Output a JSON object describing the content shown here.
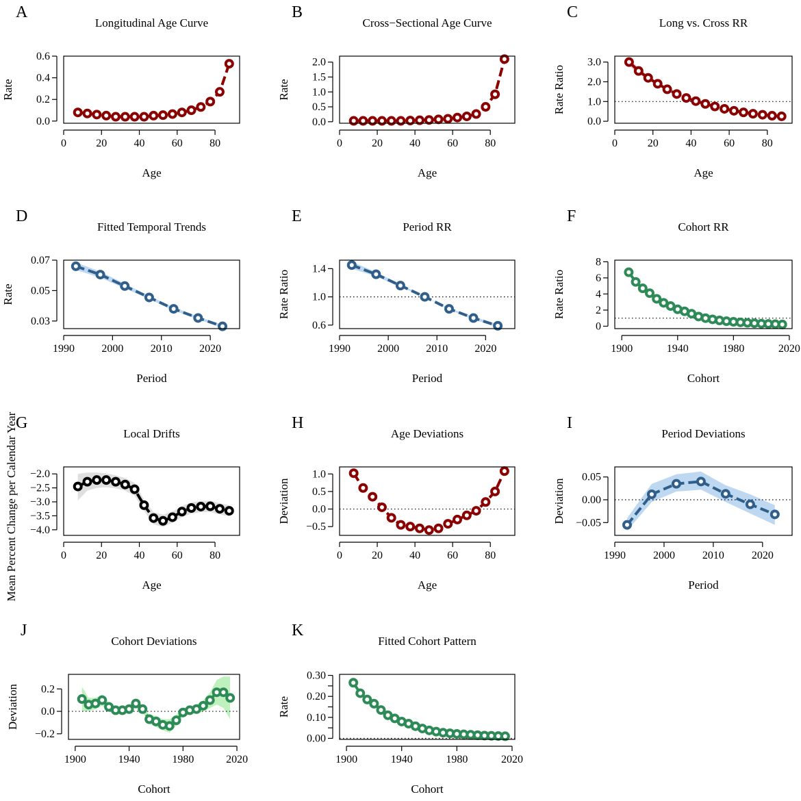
{
  "chart_data": [
    {
      "id": "A",
      "letter": "A",
      "type": "line",
      "title": "Longitudinal Age Curve",
      "xlabel": "Age",
      "ylabel": "Rate",
      "xlim": [
        0,
        93
      ],
      "xticks": [
        0,
        20,
        40,
        60,
        80
      ],
      "ylim": [
        -0.02,
        0.6
      ],
      "yticks": [
        0.0,
        0.2,
        0.4,
        0.6
      ],
      "ytick_labels": [
        "0.0",
        "0.2",
        "0.4",
        "0.6"
      ],
      "refline": null,
      "color": "#8b0000",
      "x": [
        7.5,
        12.5,
        17.5,
        22.5,
        27.5,
        32.5,
        37.5,
        42.5,
        47.5,
        52.5,
        57.5,
        62.5,
        67.5,
        72.5,
        77.5,
        82.5,
        87.5
      ],
      "y": [
        0.08,
        0.07,
        0.06,
        0.05,
        0.04,
        0.04,
        0.04,
        0.04,
        0.05,
        0.055,
        0.065,
        0.08,
        0.1,
        0.13,
        0.18,
        0.27,
        0.53
      ],
      "band": null
    },
    {
      "id": "B",
      "letter": "B",
      "type": "line",
      "title": "Cross−Sectional Age Curve",
      "xlabel": "Age",
      "ylabel": "Rate",
      "xlim": [
        0,
        93
      ],
      "xticks": [
        0,
        20,
        40,
        60,
        80
      ],
      "ylim": [
        -0.05,
        2.2
      ],
      "yticks": [
        0.0,
        0.5,
        1.0,
        1.5,
        2.0
      ],
      "ytick_labels": [
        "0.0",
        "0.5",
        "1.0",
        "1.5",
        "2.0"
      ],
      "refline": null,
      "color": "#8b0000",
      "x": [
        7.5,
        12.5,
        17.5,
        22.5,
        27.5,
        32.5,
        37.5,
        42.5,
        47.5,
        52.5,
        57.5,
        62.5,
        67.5,
        72.5,
        77.5,
        82.5,
        87.5
      ],
      "y": [
        0.03,
        0.03,
        0.03,
        0.03,
        0.03,
        0.03,
        0.04,
        0.05,
        0.06,
        0.08,
        0.1,
        0.14,
        0.18,
        0.26,
        0.5,
        0.92,
        2.1
      ],
      "band": null
    },
    {
      "id": "C",
      "letter": "C",
      "type": "line",
      "title": "Long vs. Cross RR",
      "xlabel": "Age",
      "ylabel": "Rate Ratio",
      "xlim": [
        0,
        93
      ],
      "xticks": [
        0,
        20,
        40,
        60,
        80
      ],
      "ylim": [
        -0.1,
        3.3
      ],
      "yticks": [
        0.0,
        1.0,
        2.0,
        3.0
      ],
      "ytick_labels": [
        "0.0",
        "1.0",
        "2.0",
        "3.0"
      ],
      "refline": 1.0,
      "color": "#8b0000",
      "x": [
        7.5,
        12.5,
        17.5,
        22.5,
        27.5,
        32.5,
        37.5,
        42.5,
        47.5,
        52.5,
        57.5,
        62.5,
        67.5,
        72.5,
        77.5,
        82.5,
        87.5
      ],
      "y": [
        3.0,
        2.55,
        2.2,
        1.9,
        1.62,
        1.38,
        1.18,
        1.02,
        0.88,
        0.75,
        0.63,
        0.53,
        0.45,
        0.38,
        0.33,
        0.28,
        0.25
      ],
      "band": {
        "lower": [
          2.8,
          2.4,
          2.1,
          1.82,
          1.57,
          1.34,
          1.15,
          1.0,
          0.86,
          0.73,
          0.62,
          0.52,
          0.44,
          0.37,
          0.32,
          0.27,
          0.24
        ],
        "upper": [
          3.2,
          2.7,
          2.3,
          1.98,
          1.67,
          1.42,
          1.21,
          1.04,
          0.9,
          0.77,
          0.64,
          0.54,
          0.46,
          0.39,
          0.34,
          0.29,
          0.26
        ],
        "color": "#f2c4c8"
      }
    },
    {
      "id": "D",
      "letter": "D",
      "type": "line",
      "title": "Fitted Temporal Trends",
      "xlabel": "Period",
      "ylabel": "Rate",
      "xlim": [
        1990,
        2026
      ],
      "xticks": [
        1990,
        2000,
        2010,
        2020
      ],
      "ylim": [
        0.025,
        0.07
      ],
      "yticks": [
        0.03,
        0.05,
        0.07
      ],
      "ytick_labels": [
        "0.03",
        "0.05",
        "0.07"
      ],
      "refline": null,
      "color": "#2f5f8a",
      "x": [
        1992.5,
        1997.5,
        2002.5,
        2007.5,
        2012.5,
        2017.5,
        2022.5
      ],
      "y": [
        0.066,
        0.0605,
        0.053,
        0.0455,
        0.038,
        0.032,
        0.0265
      ],
      "band": {
        "lower": [
          0.0635,
          0.0585,
          0.0515,
          0.0445,
          0.037,
          0.0311,
          0.0255
        ],
        "upper": [
          0.0685,
          0.0625,
          0.0545,
          0.0465,
          0.039,
          0.0329,
          0.0275
        ],
        "color": "#b8d4f0"
      }
    },
    {
      "id": "E",
      "letter": "E",
      "type": "line",
      "title": "Period RR",
      "xlabel": "Period",
      "ylabel": "Rate Ratio",
      "xlim": [
        1990,
        2026
      ],
      "xticks": [
        1990,
        2000,
        2010,
        2020
      ],
      "ylim": [
        0.55,
        1.52
      ],
      "yticks": [
        0.6,
        1.0,
        1.4
      ],
      "ytick_labels": [
        "0.6",
        "1.0",
        "1.4"
      ],
      "refline": 1.0,
      "color": "#2f5f8a",
      "x": [
        1992.5,
        1997.5,
        2002.5,
        2007.5,
        2012.5,
        2017.5,
        2022.5
      ],
      "y": [
        1.45,
        1.32,
        1.16,
        1.0,
        0.83,
        0.7,
        0.59
      ],
      "band": {
        "lower": [
          1.4,
          1.29,
          1.14,
          1.0,
          0.82,
          0.68,
          0.57
        ],
        "upper": [
          1.5,
          1.35,
          1.18,
          1.0,
          0.84,
          0.72,
          0.61
        ],
        "color": "#b8d4f0"
      }
    },
    {
      "id": "F",
      "letter": "F",
      "type": "line",
      "title": "Cohort RR",
      "xlabel": "Cohort",
      "ylabel": "Rate Ratio",
      "xlim": [
        1895,
        2022
      ],
      "xticks": [
        1900,
        1940,
        1980,
        2020
      ],
      "ylim": [
        -0.3,
        8.2
      ],
      "yticks": [
        0,
        2,
        4,
        6,
        8
      ],
      "ytick_labels": [
        "0",
        "2",
        "4",
        "6",
        "8"
      ],
      "refline": 1.0,
      "color": "#2e8b57",
      "x": [
        1905,
        1910,
        1915,
        1920,
        1925,
        1930,
        1935,
        1940,
        1945,
        1950,
        1955,
        1960,
        1965,
        1970,
        1975,
        1980,
        1985,
        1990,
        1995,
        2000,
        2005,
        2010,
        2015
      ],
      "y": [
        6.7,
        5.5,
        4.7,
        4.1,
        3.4,
        2.9,
        2.5,
        2.1,
        1.85,
        1.55,
        1.2,
        1.0,
        0.85,
        0.72,
        0.62,
        0.55,
        0.48,
        0.42,
        0.37,
        0.32,
        0.28,
        0.25,
        0.22
      ],
      "band": null
    },
    {
      "id": "G",
      "letter": "G",
      "type": "line",
      "title": "Local Drifts",
      "xlabel": "Age",
      "ylabel": "Mean Percent Change per Calendar Year",
      "xlim": [
        0,
        93
      ],
      "xticks": [
        0,
        20,
        40,
        60,
        80
      ],
      "ylim": [
        -4.2,
        -1.75
      ],
      "yticks": [
        -4.0,
        -3.5,
        -3.0,
        -2.5,
        -2.0
      ],
      "ytick_labels": [
        "−4.0",
        "−3.5",
        "−3.0",
        "−2.5",
        "−2.0"
      ],
      "refline": null,
      "color": "#000000",
      "x": [
        7.5,
        12.5,
        17.5,
        22.5,
        27.5,
        32.5,
        37.5,
        42.5,
        47.5,
        52.5,
        57.5,
        62.5,
        67.5,
        72.5,
        77.5,
        82.5,
        87.5
      ],
      "y": [
        -2.45,
        -2.28,
        -2.22,
        -2.22,
        -2.28,
        -2.38,
        -2.55,
        -3.12,
        -3.58,
        -3.68,
        -3.55,
        -3.35,
        -3.22,
        -3.17,
        -3.16,
        -3.25,
        -3.32
      ],
      "band": {
        "lower": [
          -2.95,
          -2.6,
          -2.5,
          -2.48,
          -2.52,
          -2.6,
          -2.78,
          -3.32,
          -3.8,
          -3.9,
          -3.75,
          -3.55,
          -3.42,
          -3.37,
          -3.36,
          -3.45,
          -3.52
        ],
        "upper": [
          -2.0,
          -1.95,
          -1.95,
          -1.98,
          -2.05,
          -2.15,
          -2.32,
          -2.92,
          -3.36,
          -3.46,
          -3.35,
          -3.15,
          -3.02,
          -2.97,
          -2.96,
          -3.05,
          -3.12
        ],
        "color": "#dcdcdc"
      }
    },
    {
      "id": "H",
      "letter": "H",
      "type": "line",
      "title": "Age Deviations",
      "xlabel": "Age",
      "ylabel": "Deviation",
      "xlim": [
        0,
        93
      ],
      "xticks": [
        0,
        20,
        40,
        60,
        80
      ],
      "ylim": [
        -0.75,
        1.2
      ],
      "yticks": [
        -0.5,
        0.0,
        0.5,
        1.0
      ],
      "ytick_labels": [
        "−0.5",
        "0.0",
        "0.5",
        "1.0"
      ],
      "refline": 0.0,
      "color": "#8b0000",
      "x": [
        7.5,
        12.5,
        17.5,
        22.5,
        27.5,
        32.5,
        37.5,
        42.5,
        47.5,
        52.5,
        57.5,
        62.5,
        67.5,
        72.5,
        77.5,
        82.5,
        87.5
      ],
      "y": [
        1.02,
        0.6,
        0.35,
        0.05,
        -0.25,
        -0.45,
        -0.5,
        -0.55,
        -0.6,
        -0.55,
        -0.42,
        -0.3,
        -0.18,
        -0.05,
        0.2,
        0.5,
        1.08
      ],
      "band": null
    },
    {
      "id": "I",
      "letter": "I",
      "type": "line",
      "title": "Period Deviations",
      "xlabel": "Period",
      "ylabel": "Deviation",
      "xlim": [
        1990,
        2026
      ],
      "xticks": [
        1990,
        2000,
        2010,
        2020
      ],
      "ylim": [
        -0.078,
        0.072
      ],
      "yticks": [
        -0.05,
        0.0,
        0.05
      ],
      "ytick_labels": [
        "−0.05",
        "0.00",
        "0.05"
      ],
      "refline": 0.0,
      "color": "#2f5f8a",
      "x": [
        1992.5,
        1997.5,
        2002.5,
        2007.5,
        2012.5,
        2017.5,
        2022.5
      ],
      "y": [
        -0.055,
        0.012,
        0.035,
        0.04,
        0.013,
        -0.01,
        -0.032
      ],
      "band": {
        "lower": [
          -0.068,
          -0.005,
          0.018,
          0.022,
          -0.005,
          -0.03,
          -0.055
        ],
        "upper": [
          -0.04,
          0.035,
          0.056,
          0.062,
          0.032,
          0.012,
          -0.012
        ],
        "color": "#b8d4f0"
      }
    },
    {
      "id": "J",
      "letter": "J",
      "type": "line",
      "title": "Cohort Deviations",
      "xlabel": "Cohort",
      "ylabel": "Deviation",
      "xlim": [
        1895,
        2022
      ],
      "xticks": [
        1900,
        1940,
        1980,
        2020
      ],
      "ylim": [
        -0.25,
        0.33
      ],
      "yticks": [
        -0.2,
        0.0,
        0.2
      ],
      "ytick_labels": [
        "−0.2",
        "0.0",
        "0.2"
      ],
      "refline": 0.0,
      "color": "#2e8b57",
      "x": [
        1905,
        1910,
        1915,
        1920,
        1925,
        1930,
        1935,
        1940,
        1945,
        1950,
        1955,
        1960,
        1965,
        1970,
        1975,
        1980,
        1985,
        1990,
        1995,
        2000,
        2005,
        2010,
        2015
      ],
      "y": [
        0.11,
        0.06,
        0.07,
        0.1,
        0.04,
        0.01,
        0.01,
        0.02,
        0.07,
        0.02,
        -0.07,
        -0.09,
        -0.12,
        -0.13,
        -0.08,
        -0.01,
        0.01,
        0.02,
        0.05,
        0.1,
        0.17,
        0.17,
        0.12
      ],
      "band": {
        "lower": [
          0.0,
          0.0,
          0.02,
          0.05,
          0.0,
          -0.02,
          -0.02,
          -0.01,
          0.04,
          -0.01,
          -0.11,
          -0.14,
          -0.17,
          -0.19,
          -0.13,
          -0.05,
          -0.02,
          -0.02,
          0.0,
          0.03,
          0.06,
          0.03,
          -0.07
        ],
        "upper": [
          0.22,
          0.12,
          0.12,
          0.15,
          0.08,
          0.04,
          0.04,
          0.05,
          0.1,
          0.05,
          -0.03,
          -0.04,
          -0.07,
          -0.07,
          -0.03,
          0.03,
          0.04,
          0.06,
          0.1,
          0.17,
          0.28,
          0.31,
          0.31
        ],
        "color": "#b8f0b8"
      }
    },
    {
      "id": "K",
      "letter": "K",
      "type": "line",
      "title": "Fitted Cohort Pattern",
      "xlabel": "Cohort",
      "ylabel": "Rate",
      "xlim": [
        1895,
        2022
      ],
      "xticks": [
        1900,
        1940,
        1980,
        2020
      ],
      "ylim": [
        -0.005,
        0.305
      ],
      "yticks": [
        0.0,
        0.1,
        0.2,
        0.3
      ],
      "ytick_labels": [
        "0.00",
        "0.10",
        "0.20",
        "0.30"
      ],
      "extra_ticks": [
        0.05,
        0.15,
        0.25
      ],
      "refline": 0.0,
      "color": "#2e8b57",
      "x": [
        1905,
        1910,
        1915,
        1920,
        1925,
        1930,
        1935,
        1940,
        1945,
        1950,
        1955,
        1960,
        1965,
        1970,
        1975,
        1980,
        1985,
        1990,
        1995,
        2000,
        2005,
        2010,
        2015
      ],
      "y": [
        0.265,
        0.215,
        0.185,
        0.165,
        0.135,
        0.11,
        0.095,
        0.08,
        0.07,
        0.058,
        0.047,
        0.038,
        0.032,
        0.027,
        0.024,
        0.021,
        0.019,
        0.017,
        0.015,
        0.013,
        0.012,
        0.011,
        0.01
      ],
      "band": null
    }
  ]
}
